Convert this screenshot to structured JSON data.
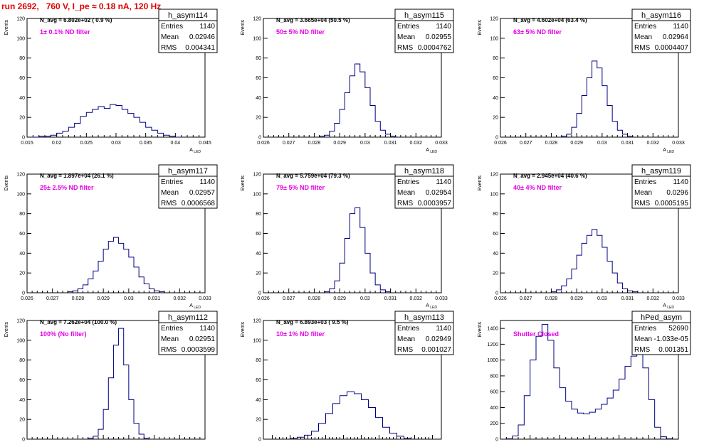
{
  "run_title": "run 2692,   760 V, I_pe ≈ 0.18 nA, 120 Hz",
  "colors": {
    "title": "#e00000",
    "histogram": "#000080",
    "annotation": "#e600e6",
    "axis": "#000000"
  },
  "stats_labels": {
    "entries": "Entries",
    "mean": "Mean",
    "rms": "RMS"
  },
  "chart_data": [
    {
      "type": "bar",
      "name": "h_asym114",
      "navg": "N_avg = 6.802e+02 ( 0.9 %)",
      "filter": "1± 0.1% ND filter",
      "entries": "1140",
      "mean": "0.02946",
      "rms": "0.004341",
      "ylabel": "Events",
      "xlabel": "A_LED",
      "xlim": [
        0.015,
        0.045
      ],
      "ylim": [
        0,
        120
      ],
      "xticks": [
        "0.015",
        "0.02",
        "0.025",
        "0.03",
        "0.035",
        "0.04",
        "0.045"
      ],
      "yticks": [
        "0",
        "20",
        "40",
        "60",
        "80",
        "100",
        "120"
      ],
      "x": [
        0.015,
        0.016,
        0.017,
        0.018,
        0.019,
        0.02,
        0.021,
        0.022,
        0.023,
        0.024,
        0.025,
        0.026,
        0.027,
        0.028,
        0.029,
        0.03,
        0.031,
        0.032,
        0.033,
        0.034,
        0.035,
        0.036,
        0.037,
        0.038,
        0.039,
        0.04
      ],
      "values": [
        0,
        0,
        1,
        1,
        2,
        4,
        6,
        10,
        14,
        21,
        25,
        28,
        31,
        29,
        33,
        32,
        28,
        24,
        20,
        15,
        10,
        7,
        4,
        2,
        1,
        0
      ]
    },
    {
      "type": "bar",
      "name": "h_asym115",
      "navg": "N_avg = 3.665e+04 (50.5 %)",
      "filter": "50± 5% ND filter",
      "entries": "1140",
      "mean": "0.02955",
      "rms": "0.0004762",
      "ylabel": "Events",
      "xlabel": "A_LED",
      "xlim": [
        0.026,
        0.033
      ],
      "ylim": [
        0,
        120
      ],
      "xticks": [
        "0.026",
        "0.027",
        "0.028",
        "0.029",
        "0.03",
        "0.031",
        "0.032",
        "0.033"
      ],
      "yticks": [
        "0",
        "20",
        "40",
        "60",
        "80",
        "100",
        "120"
      ],
      "x": [
        0.0282,
        0.0284,
        0.0286,
        0.0288,
        0.029,
        0.0292,
        0.0294,
        0.0296,
        0.0298,
        0.03,
        0.0302,
        0.0304,
        0.0306,
        0.0308,
        0.031
      ],
      "values": [
        1,
        2,
        6,
        14,
        28,
        45,
        62,
        74,
        66,
        50,
        32,
        16,
        7,
        3,
        1
      ]
    },
    {
      "type": "bar",
      "name": "h_asym116",
      "navg": "N_avg = 4.602e+04 (63.4 %)",
      "filter": "63± 5% ND filter",
      "entries": "1140",
      "mean": "0.02964",
      "rms": "0.0004407",
      "ylabel": "Events",
      "xlabel": "A_LED",
      "xlim": [
        0.026,
        0.033
      ],
      "ylim": [
        0,
        120
      ],
      "xticks": [
        "0.026",
        "0.027",
        "0.028",
        "0.029",
        "0.03",
        "0.031",
        "0.032",
        "0.033"
      ],
      "yticks": [
        "0",
        "20",
        "40",
        "60",
        "80",
        "100",
        "120"
      ],
      "x": [
        0.0284,
        0.0286,
        0.0288,
        0.029,
        0.0292,
        0.0294,
        0.0296,
        0.0298,
        0.03,
        0.0302,
        0.0304,
        0.0306,
        0.0308,
        0.031
      ],
      "values": [
        1,
        3,
        10,
        24,
        42,
        60,
        77,
        70,
        52,
        32,
        16,
        7,
        3,
        1
      ]
    },
    {
      "type": "bar",
      "name": "h_asym117",
      "navg": "N_avg = 1.897e+04 (26.1 %)",
      "filter": "25± 2.5% ND filter",
      "entries": "1140",
      "mean": "0.02957",
      "rms": "0.0006568",
      "ylabel": "Events",
      "xlabel": "A_LED",
      "xlim": [
        0.026,
        0.033
      ],
      "ylim": [
        0,
        120
      ],
      "xticks": [
        "0.026",
        "0.027",
        "0.028",
        "0.029",
        "0.03",
        "0.031",
        "0.032",
        "0.033"
      ],
      "yticks": [
        "0",
        "20",
        "40",
        "60",
        "80",
        "100",
        "120"
      ],
      "x": [
        0.0276,
        0.0278,
        0.028,
        0.0282,
        0.0284,
        0.0286,
        0.0288,
        0.029,
        0.0292,
        0.0294,
        0.0296,
        0.0298,
        0.03,
        0.0302,
        0.0304,
        0.0306,
        0.0308,
        0.031,
        0.0312
      ],
      "values": [
        1,
        2,
        4,
        8,
        14,
        22,
        32,
        44,
        52,
        56,
        50,
        44,
        36,
        26,
        16,
        9,
        4,
        2,
        1
      ]
    },
    {
      "type": "bar",
      "name": "h_asym118",
      "navg": "N_avg = 5.759e+04 (79.3 %)",
      "filter": "79± 5% ND filter",
      "entries": "1140",
      "mean": "0.02954",
      "rms": "0.0003957",
      "ylabel": "Events",
      "xlabel": "A_LED",
      "xlim": [
        0.026,
        0.033
      ],
      "ylim": [
        0,
        120
      ],
      "xticks": [
        "0.026",
        "0.027",
        "0.028",
        "0.029",
        "0.03",
        "0.031",
        "0.032",
        "0.033"
      ],
      "yticks": [
        "0",
        "20",
        "40",
        "60",
        "80",
        "100",
        "120"
      ],
      "x": [
        0.0284,
        0.0286,
        0.0288,
        0.029,
        0.0292,
        0.0294,
        0.0296,
        0.0298,
        0.03,
        0.0302,
        0.0304,
        0.0306,
        0.0308
      ],
      "values": [
        1,
        4,
        12,
        30,
        55,
        80,
        86,
        66,
        40,
        20,
        8,
        3,
        1
      ]
    },
    {
      "type": "bar",
      "name": "h_asym119",
      "navg": "N_avg = 2.945e+04 (40.6 %)",
      "filter": "40± 4% ND filter",
      "entries": "1140",
      "mean": "0.0296",
      "rms": "0.0005195",
      "ylabel": "Events",
      "xlabel": "A_LED",
      "xlim": [
        0.026,
        0.033
      ],
      "ylim": [
        0,
        120
      ],
      "xticks": [
        "0.026",
        "0.027",
        "0.028",
        "0.029",
        "0.03",
        "0.031",
        "0.032",
        "0.033"
      ],
      "yticks": [
        "0",
        "20",
        "40",
        "60",
        "80",
        "100",
        "120"
      ],
      "x": [
        0.028,
        0.0282,
        0.0284,
        0.0286,
        0.0288,
        0.029,
        0.0292,
        0.0294,
        0.0296,
        0.0298,
        0.03,
        0.0302,
        0.0304,
        0.0306,
        0.0308,
        0.031,
        0.0312
      ],
      "values": [
        1,
        3,
        7,
        14,
        24,
        38,
        50,
        58,
        64,
        58,
        46,
        32,
        20,
        10,
        4,
        2,
        1
      ]
    },
    {
      "type": "bar",
      "name": "h_asym112",
      "navg": "N_avg = 7.262e+04 (100.0 %)",
      "filter": "100% (No filter)",
      "entries": "1140",
      "mean": "0.02951",
      "rms": "0.0003599",
      "ylabel": "Events",
      "xlabel": "A_LED",
      "xlim": [
        0.026,
        0.033
      ],
      "ylim": [
        0,
        120
      ],
      "xticks": [
        "0.026",
        "0.027",
        "0.028",
        "0.029",
        "0.03",
        "0.031",
        "0.032",
        "0.033"
      ],
      "yticks": [
        "0",
        "20",
        "40",
        "60",
        "80",
        "100",
        "120"
      ],
      "x": [
        0.0284,
        0.0286,
        0.0288,
        0.029,
        0.0292,
        0.0294,
        0.0296,
        0.0298,
        0.03,
        0.0302,
        0.0304,
        0.0306
      ],
      "values": [
        1,
        3,
        10,
        30,
        62,
        95,
        112,
        75,
        40,
        16,
        5,
        1
      ]
    },
    {
      "type": "bar",
      "name": "h_asym113",
      "navg": "N_avg = 6.893e+03 ( 9.5 %)",
      "filter": "10± 1% ND filter",
      "entries": "1140",
      "mean": "0.02949",
      "rms": "0.001027",
      "ylabel": "Events",
      "xlabel": "A_LED",
      "xlim": [
        0.0245,
        0.0345
      ],
      "ylim": [
        0,
        120
      ],
      "xticks": [
        "0.025",
        "0.026",
        "0.027",
        "0.028",
        "0.029",
        "0.03",
        "0.031",
        "0.032",
        "0.033",
        "0.034"
      ],
      "yticks": [
        "0",
        "20",
        "40",
        "60",
        "80",
        "100",
        "120"
      ],
      "x": [
        0.026,
        0.0264,
        0.0268,
        0.0272,
        0.0276,
        0.028,
        0.0284,
        0.0288,
        0.0292,
        0.0296,
        0.03,
        0.0304,
        0.0308,
        0.0312,
        0.0316,
        0.032,
        0.0324
      ],
      "values": [
        1,
        2,
        4,
        8,
        16,
        26,
        36,
        44,
        48,
        46,
        40,
        32,
        22,
        12,
        6,
        3,
        1
      ]
    },
    {
      "type": "bar",
      "name": "hPed_asym",
      "navg": "",
      "filter": "Shutter Closed",
      "entries": "52690",
      "mean": "-1.033e-05",
      "rms": "0.001351",
      "ylabel": "Events",
      "xlabel": "",
      "xlim": [
        -0.003,
        0.003
      ],
      "ylim": [
        0,
        1500
      ],
      "xticks": [
        "-0.003",
        "-0.002",
        "-0.001",
        "0",
        "0.001",
        "0.002",
        "0.003"
      ],
      "yticks": [
        "0",
        "200",
        "400",
        "600",
        "800",
        "1000",
        "1200",
        "1400"
      ],
      "x": [
        -0.0028,
        -0.0026,
        -0.0024,
        -0.0022,
        -0.002,
        -0.0018,
        -0.0016,
        -0.0014,
        -0.0012,
        -0.001,
        -0.0008,
        -0.0006,
        -0.0004,
        -0.0002,
        0,
        0.0002,
        0.0004,
        0.0006,
        0.0008,
        0.001,
        0.0012,
        0.0014,
        0.0016,
        0.0018,
        0.002,
        0.0022,
        0.0024,
        0.0026
      ],
      "values": [
        5,
        40,
        180,
        550,
        1000,
        1300,
        1450,
        1250,
        900,
        650,
        480,
        380,
        330,
        320,
        340,
        380,
        440,
        520,
        620,
        760,
        920,
        1050,
        1080,
        900,
        500,
        150,
        30,
        5
      ]
    }
  ]
}
